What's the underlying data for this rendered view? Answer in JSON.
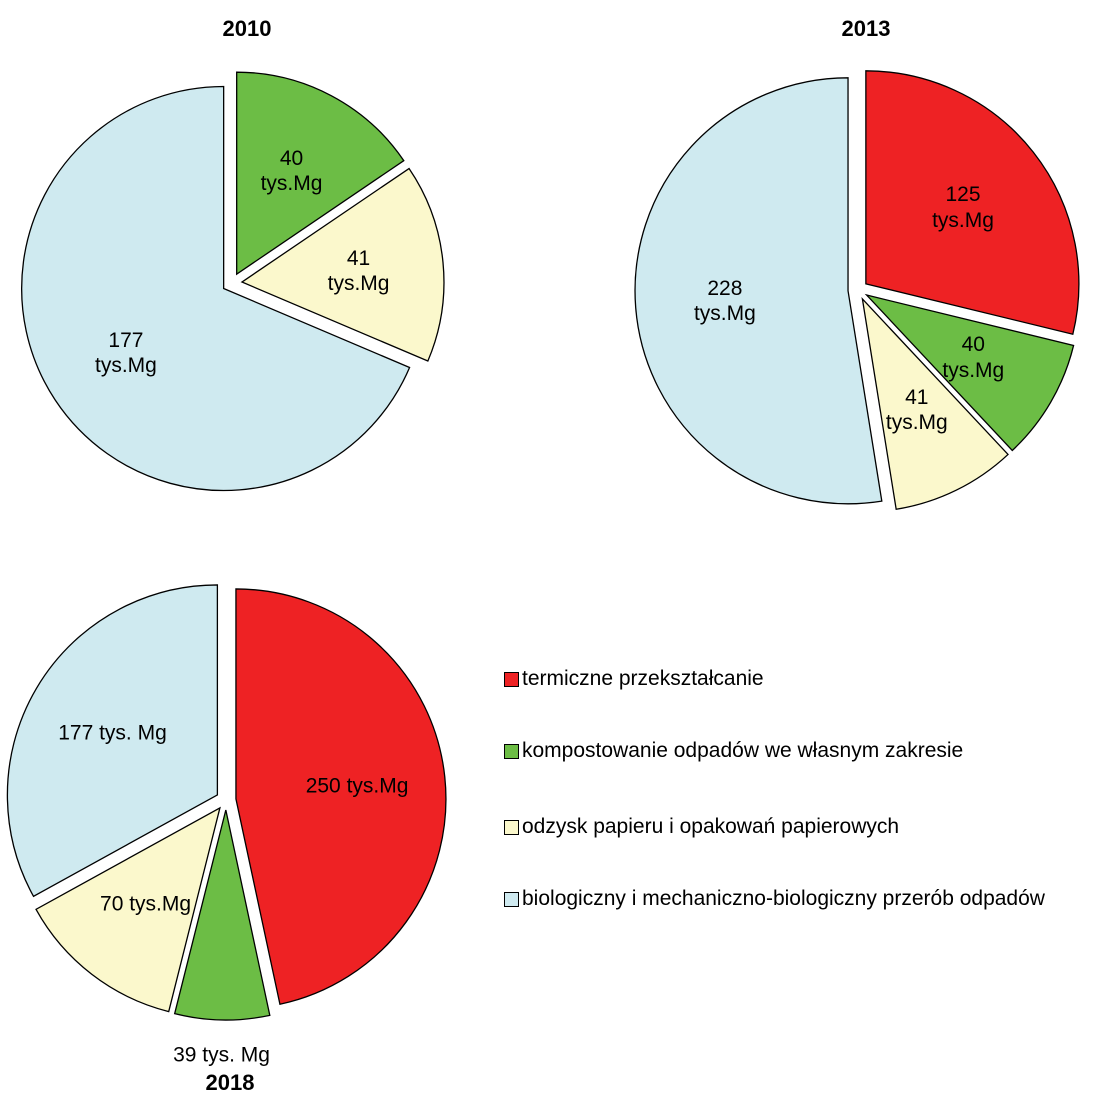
{
  "chart_data": [
    {
      "type": "pie",
      "title": "2010",
      "categories": [
        "kompostowanie odpadów we własnym zakresie",
        "odzysk papieru i opakowań papierowych",
        "biologiczny i mechaniczno-biologiczny przerób odpadów"
      ],
      "values": [
        40,
        41,
        177
      ],
      "value_labels": [
        "40\ntys.Mg",
        "41\ntys.Mg",
        "177\ntys.Mg"
      ],
      "colors": [
        "#6cbd45",
        "#fbf8cc",
        "#cfeaf0"
      ]
    },
    {
      "type": "pie",
      "title": "2013",
      "categories": [
        "termiczne przekształcanie",
        "kompostowanie odpadów we własnym zakresie",
        "odzysk papieru i opakowań papierowych",
        "biologiczny i mechaniczno-biologiczny przerób odpadów"
      ],
      "values": [
        125,
        40,
        41,
        228
      ],
      "value_labels": [
        "125\ntys.Mg",
        "40\ntys.Mg",
        "41\ntys.Mg",
        "228\ntys.Mg"
      ],
      "colors": [
        "#ee2224",
        "#6cbd45",
        "#fbf8cc",
        "#cfeaf0"
      ]
    },
    {
      "type": "pie",
      "title": "2018",
      "categories": [
        "termiczne przekształcanie",
        "kompostowanie odpadów we własnym zakresie",
        "odzysk papieru i opakowań papierowych",
        "biologiczny i mechaniczno-biologiczny przerób odpadów"
      ],
      "values": [
        250,
        39,
        70,
        177
      ],
      "value_labels": [
        "250 tys.Mg",
        "39 tys. Mg",
        "70 tys.Mg",
        "177 tys. Mg"
      ],
      "colors": [
        "#ee2224",
        "#6cbd45",
        "#fbf8cc",
        "#cfeaf0"
      ]
    }
  ],
  "legend": {
    "names": [
      "termiczne przekształcanie",
      "kompostowanie odpadów we własnym zakresie",
      "odzysk papieru i opakowań papierowych",
      "biologiczny i mechaniczno-biologiczny przerób odpadów"
    ],
    "colors": [
      "#ee2224",
      "#6cbd45",
      "#fbf8cc",
      "#cfeaf0"
    ]
  }
}
